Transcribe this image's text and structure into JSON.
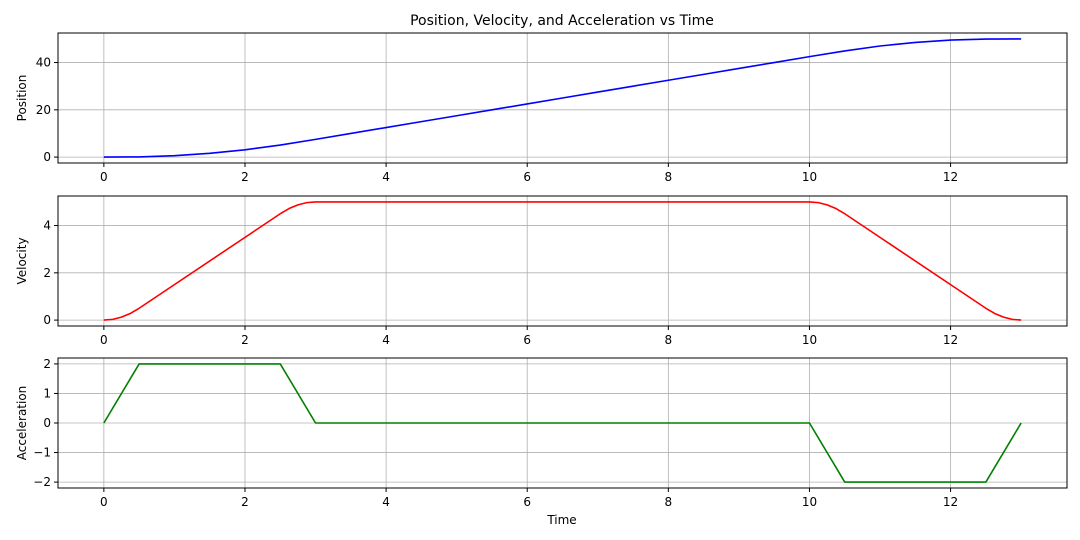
{
  "chart_data": {
    "title": "Position, Velocity, and Acceleration vs Time",
    "xlabel": "Time",
    "shared_x": {
      "ticks": [
        0,
        2,
        4,
        6,
        8,
        10,
        12
      ],
      "tick_labels": [
        "0",
        "2",
        "4",
        "6",
        "8",
        "10",
        "12"
      ],
      "xlim": [
        -0.65,
        13.65
      ]
    },
    "grid": true,
    "panels": [
      {
        "type": "line",
        "ylabel": "Position",
        "ylim": [
          -2.5,
          52.5
        ],
        "yticks": [
          0,
          20,
          40
        ],
        "ytick_labels": [
          "0",
          "20",
          "40"
        ],
        "series": [
          {
            "color": "#0000ff",
            "x": [
              0,
              0.5,
              1.0,
              1.5,
              2.0,
              2.5,
              3.0,
              3.5,
              4.0,
              4.5,
              5.0,
              5.5,
              6.0,
              6.5,
              7.0,
              7.5,
              8.0,
              8.5,
              9.0,
              9.5,
              10.0,
              10.5,
              11.0,
              11.5,
              12.0,
              12.5,
              13.0
            ],
            "y": [
              0,
              0.083,
              0.583,
              1.583,
              3.083,
              5.083,
              7.5,
              10.0,
              12.5,
              15.0,
              17.5,
              20.0,
              22.5,
              25.0,
              27.5,
              30.0,
              32.5,
              35.0,
              37.5,
              40.0,
              42.5,
              44.917,
              47.0,
              48.5,
              49.5,
              49.917,
              50.0
            ]
          }
        ]
      },
      {
        "type": "line",
        "ylabel": "Velocity",
        "ylim": [
          -0.25,
          5.25
        ],
        "yticks": [
          0,
          2,
          4
        ],
        "ytick_labels": [
          "0",
          "2",
          "4"
        ],
        "series": [
          {
            "color": "#ff0000",
            "x": [
              0,
              0.125,
              0.25,
              0.375,
              0.5,
              2.5,
              2.625,
              2.75,
              2.875,
              3.0,
              10.0,
              10.125,
              10.25,
              10.375,
              10.5,
              12.5,
              12.625,
              12.75,
              12.875,
              13.0
            ],
            "y": [
              0,
              0.031,
              0.125,
              0.281,
              0.5,
              4.5,
              4.719,
              4.875,
              4.969,
              5.0,
              5.0,
              4.969,
              4.875,
              4.719,
              4.5,
              0.5,
              0.281,
              0.125,
              0.031,
              0
            ]
          }
        ]
      },
      {
        "type": "line",
        "ylabel": "Acceleration",
        "ylim": [
          -2.2,
          2.2
        ],
        "yticks": [
          -2,
          -1,
          0,
          1,
          2
        ],
        "ytick_labels": [
          "−2",
          "−1",
          "0",
          "1",
          "2"
        ],
        "series": [
          {
            "color": "#008000",
            "x": [
              0,
              0.5,
              2.5,
              3.0,
              10.0,
              10.5,
              12.5,
              13.0
            ],
            "y": [
              0,
              2,
              2,
              0,
              0,
              -2,
              -2,
              0
            ]
          }
        ]
      }
    ]
  }
}
